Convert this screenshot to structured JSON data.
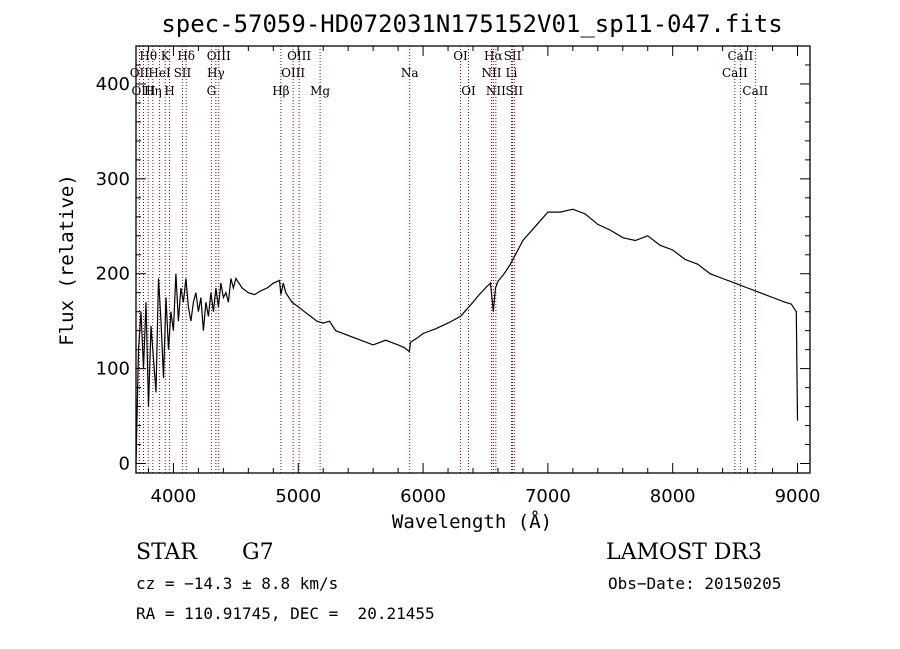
{
  "chart_data": {
    "type": "line",
    "title": "spec-57059-HD072031N175152V01_sp11-047.fits",
    "xlabel": "Wavelength (Å)",
    "ylabel": "Flux (relative)",
    "xlim": [
      3700,
      9100
    ],
    "ylim": [
      -10,
      440
    ],
    "xticks": [
      4000,
      5000,
      6000,
      7000,
      8000,
      9000
    ],
    "yticks": [
      0,
      100,
      200,
      300,
      400
    ],
    "series": [
      {
        "name": "flux",
        "x": [
          3700,
          3720,
          3740,
          3760,
          3780,
          3800,
          3820,
          3840,
          3860,
          3880,
          3900,
          3920,
          3940,
          3960,
          3980,
          4000,
          4020,
          4040,
          4060,
          4080,
          4100,
          4120,
          4140,
          4160,
          4180,
          4200,
          4220,
          4240,
          4260,
          4280,
          4300,
          4320,
          4340,
          4360,
          4380,
          4400,
          4420,
          4440,
          4460,
          4480,
          4500,
          4550,
          4600,
          4650,
          4700,
          4750,
          4800,
          4850,
          4861,
          4880,
          4900,
          4950,
          5000,
          5050,
          5100,
          5150,
          5200,
          5250,
          5300,
          5400,
          5500,
          5600,
          5700,
          5800,
          5850,
          5890,
          5900,
          5950,
          6000,
          6100,
          6200,
          6300,
          6400,
          6450,
          6500,
          6540,
          6563,
          6580,
          6600,
          6650,
          6700,
          6800,
          6900,
          7000,
          7100,
          7200,
          7300,
          7400,
          7500,
          7600,
          7700,
          7800,
          7900,
          8000,
          8100,
          8200,
          8300,
          8400,
          8500,
          8600,
          8700,
          8800,
          8900,
          8950,
          8990,
          9000
        ],
        "y": [
          0,
          120,
          160,
          100,
          170,
          60,
          145,
          110,
          75,
          195,
          150,
          90,
          175,
          120,
          160,
          140,
          200,
          150,
          185,
          170,
          195,
          165,
          150,
          170,
          180,
          160,
          175,
          140,
          170,
          155,
          180,
          160,
          185,
          165,
          190,
          175,
          180,
          170,
          195,
          185,
          195,
          185,
          180,
          178,
          182,
          185,
          190,
          193,
          178,
          190,
          180,
          170,
          165,
          160,
          155,
          150,
          148,
          150,
          140,
          135,
          130,
          125,
          130,
          125,
          122,
          118,
          128,
          132,
          137,
          142,
          148,
          155,
          170,
          178,
          185,
          190,
          160,
          185,
          192,
          200,
          210,
          235,
          250,
          265,
          265,
          268,
          263,
          252,
          246,
          238,
          235,
          240,
          230,
          225,
          215,
          210,
          200,
          195,
          190,
          185,
          180,
          175,
          170,
          168,
          160,
          45
        ]
      }
    ],
    "emission_lines": [
      {
        "label": "Hθ",
        "wavelength": 3798,
        "row": 1
      },
      {
        "label": "OII",
        "wavelength": 3727,
        "row": 2
      },
      {
        "label": "OIII",
        "wavelength": 3760,
        "row": 3
      },
      {
        "label": "HeI",
        "wavelength": 3889,
        "row": 2
      },
      {
        "label": "Hη",
        "wavelength": 3835,
        "row": 3
      },
      {
        "label": "K",
        "wavelength": 3934,
        "row": 1
      },
      {
        "label": "SII",
        "wavelength": 4072,
        "row": 2
      },
      {
        "label": "H",
        "wavelength": 3969,
        "row": 3
      },
      {
        "label": "Hδ",
        "wavelength": 4102,
        "row": 1
      },
      {
        "label": "OIII",
        "wavelength": 4363,
        "row": 1
      },
      {
        "label": "Hγ",
        "wavelength": 4340,
        "row": 2
      },
      {
        "label": "G",
        "wavelength": 4304,
        "row": 3
      },
      {
        "label": "Hβ",
        "wavelength": 4861,
        "row": 3
      },
      {
        "label": "OIII",
        "wavelength": 5007,
        "row": 1
      },
      {
        "label": "OIII",
        "wavelength": 4959,
        "row": 2
      },
      {
        "label": "Mg",
        "wavelength": 5175,
        "row": 3
      },
      {
        "label": "Na",
        "wavelength": 5893,
        "row": 2
      },
      {
        "label": "OI",
        "wavelength": 6300,
        "row": 1
      },
      {
        "label": "OI",
        "wavelength": 6364,
        "row": 3
      },
      {
        "label": "Hα",
        "wavelength": 6563,
        "row": 1
      },
      {
        "label": "NII",
        "wavelength": 6548,
        "row": 2
      },
      {
        "label": "NII",
        "wavelength": 6583,
        "row": 3
      },
      {
        "label": "SII",
        "wavelength": 6717,
        "row": 1
      },
      {
        "label": "Li",
        "wavelength": 6708,
        "row": 2
      },
      {
        "label": "SII",
        "wavelength": 6731,
        "row": 3
      },
      {
        "label": "CaII",
        "wavelength": 8542,
        "row": 1
      },
      {
        "label": "CaII",
        "wavelength": 8498,
        "row": 2
      },
      {
        "label": "CaII",
        "wavelength": 8662,
        "row": 3
      }
    ],
    "line_color": "#8b0000",
    "spectrum_color": "#000000"
  },
  "info": {
    "object_class": "STAR",
    "subclass": "G7",
    "survey": "LAMOST DR3",
    "redshift": "cz = −14.3 ± 8.8 km/s",
    "obs_date": "Obs−Date: 20150205",
    "coords": "RA = 110.91745, DEC =  20.21455"
  }
}
